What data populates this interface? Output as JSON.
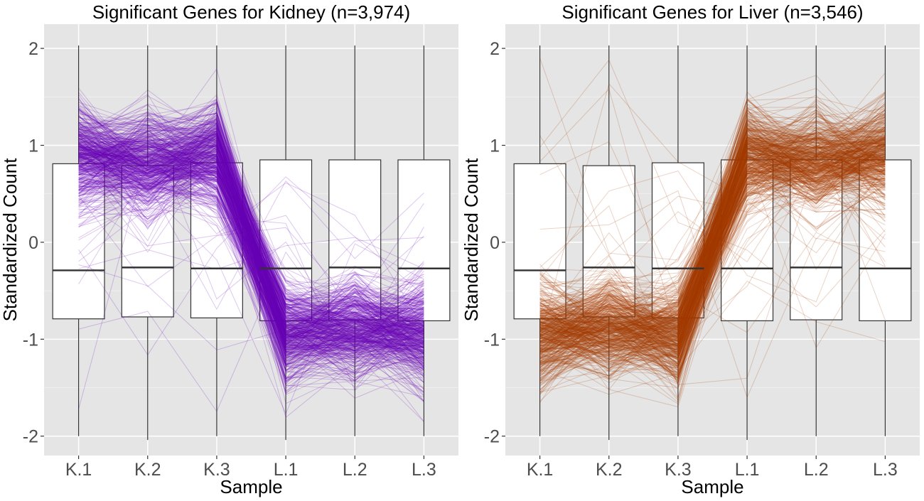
{
  "chart_data": [
    {
      "type": "box",
      "title": "Significant Genes for Kidney (n=3,974)",
      "xlabel": "Sample",
      "ylabel": "Standardized Count",
      "categories": [
        "K.1",
        "K.2",
        "K.3",
        "L.1",
        "L.2",
        "L.3"
      ],
      "ylim": [
        -2.2,
        2.25
      ],
      "yticks": [
        -2,
        -1,
        0,
        1,
        2
      ],
      "grid": true,
      "line_color": "#6a00b8",
      "boxes": [
        {
          "category": "K.1",
          "min": -2.0,
          "q1": -0.79,
          "median": -0.29,
          "q3": 0.81,
          "max": 2.03
        },
        {
          "category": "K.2",
          "min": -2.04,
          "q1": -0.77,
          "median": -0.26,
          "q3": 0.79,
          "max": 2.03
        },
        {
          "category": "K.3",
          "min": -2.0,
          "q1": -0.78,
          "median": -0.27,
          "q3": 0.82,
          "max": 2.03
        },
        {
          "category": "L.1",
          "min": -2.04,
          "q1": -0.81,
          "median": -0.27,
          "q3": 0.85,
          "max": 2.03
        },
        {
          "category": "L.2",
          "min": -2.0,
          "q1": -0.8,
          "median": -0.26,
          "q3": 0.85,
          "max": 2.03
        },
        {
          "category": "L.3",
          "min": -2.0,
          "q1": -0.81,
          "median": -0.27,
          "q3": 0.85,
          "max": 2.03
        }
      ],
      "gene_profiles": {
        "count": 3974,
        "pattern_means": [
          0.88,
          0.82,
          0.88,
          -0.95,
          -0.88,
          -0.95
        ],
        "pattern_spread": 0.25
      }
    },
    {
      "type": "box",
      "title": "Significant Genes for Liver (n=3,546)",
      "xlabel": "Sample",
      "ylabel": "Standardized Count",
      "categories": [
        "K.1",
        "K.2",
        "K.3",
        "L.1",
        "L.2",
        "L.3"
      ],
      "ylim": [
        -2.2,
        2.25
      ],
      "yticks": [
        -2,
        -1,
        0,
        1,
        2
      ],
      "grid": true,
      "line_color": "#a63c00",
      "boxes": [
        {
          "category": "K.1",
          "min": -2.0,
          "q1": -0.79,
          "median": -0.29,
          "q3": 0.81,
          "max": 2.03
        },
        {
          "category": "K.2",
          "min": -2.04,
          "q1": -0.77,
          "median": -0.26,
          "q3": 0.79,
          "max": 2.03
        },
        {
          "category": "K.3",
          "min": -2.0,
          "q1": -0.78,
          "median": -0.27,
          "q3": 0.82,
          "max": 2.03
        },
        {
          "category": "L.1",
          "min": -2.04,
          "q1": -0.81,
          "median": -0.27,
          "q3": 0.85,
          "max": 2.03
        },
        {
          "category": "L.2",
          "min": -2.0,
          "q1": -0.8,
          "median": -0.26,
          "q3": 0.85,
          "max": 2.03
        },
        {
          "category": "L.3",
          "min": -2.0,
          "q1": -0.81,
          "median": -0.27,
          "q3": 0.85,
          "max": 2.03
        }
      ],
      "gene_profiles": {
        "count": 3546,
        "pattern_means": [
          -0.95,
          -0.88,
          -0.95,
          0.88,
          0.82,
          0.88
        ],
        "pattern_spread": 0.25
      }
    }
  ]
}
